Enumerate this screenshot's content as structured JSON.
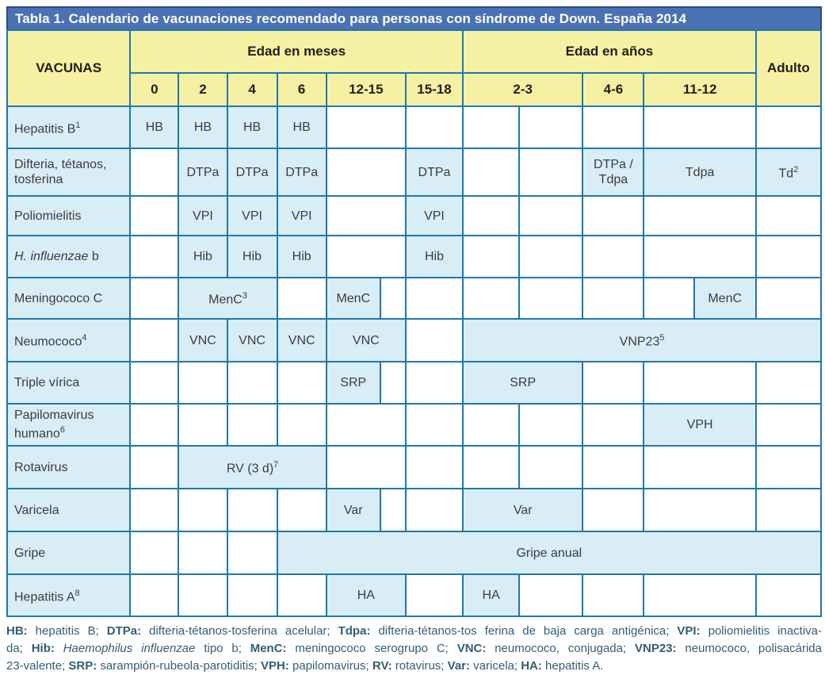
{
  "title": "Tabla 1. Calendario de vacunaciones recomendado para personas con síndrome de Down. España 2014",
  "colors": {
    "title_bar": "#4a71b3",
    "header_yellow": "#f6f0a3",
    "dose_cell_blue": "#d9edf6",
    "grid_line": "#2077ad",
    "footnote_text": "#345c72"
  },
  "table": {
    "corner_label": "VACUNAS",
    "group_headers": [
      {
        "label": "Edad en meses",
        "span": 7
      },
      {
        "label": "Edad en años",
        "span": 5
      }
    ],
    "adulto_label": "Adulto",
    "age_headers": [
      {
        "label": "0",
        "span": 1
      },
      {
        "label": "2",
        "span": 1
      },
      {
        "label": "4",
        "span": 1
      },
      {
        "label": "6",
        "span": 1
      },
      {
        "label": "12-15",
        "span": 2
      },
      {
        "label": "15-18",
        "span": 1
      },
      {
        "label": "2-3",
        "span": 2
      },
      {
        "label": "4-6",
        "span": 1
      },
      {
        "label": "11-12",
        "span": 2
      },
      {
        "label": "Adulto",
        "span": 1
      }
    ],
    "rows": [
      {
        "label": {
          "text": "Hepatitis B",
          "sup": "1"
        },
        "cells": [
          {
            "text": "HB",
            "filled": true
          },
          {
            "text": "HB",
            "filled": true
          },
          {
            "text": "HB",
            "filled": true
          },
          {
            "text": "HB",
            "filled": true
          },
          {
            "span": 2
          },
          {},
          {},
          {},
          {},
          {
            "span": 2
          },
          {}
        ]
      },
      {
        "label": {
          "text": "Difteria, tétanos, tosferina"
        },
        "cells": [
          {},
          {
            "text": "DTPa",
            "filled": true
          },
          {
            "text": "DTPa",
            "filled": true
          },
          {
            "text": "DTPa",
            "filled": true
          },
          {
            "span": 2
          },
          {
            "text": "DTPa",
            "filled": true
          },
          {},
          {},
          {
            "text": "DTPa / Tdpa",
            "filled": true
          },
          {
            "text": "Tdpa",
            "filled": true,
            "span": 2
          },
          {
            "text": "Td",
            "sup": "2",
            "filled": true
          }
        ]
      },
      {
        "label": {
          "text": "Poliomielitis"
        },
        "cells": [
          {},
          {
            "text": "VPI",
            "filled": true
          },
          {
            "text": "VPI",
            "filled": true
          },
          {
            "text": "VPI",
            "filled": true
          },
          {
            "span": 2
          },
          {
            "text": "VPI",
            "filled": true
          },
          {},
          {},
          {},
          {
            "span": 2
          },
          {}
        ]
      },
      {
        "label": {
          "italic": "H. influenzae",
          "text": " b"
        },
        "cells": [
          {},
          {
            "text": "Hib",
            "filled": true
          },
          {
            "text": "Hib",
            "filled": true
          },
          {
            "text": "Hib",
            "filled": true
          },
          {
            "span": 2
          },
          {
            "text": "Hib",
            "filled": true
          },
          {},
          {},
          {},
          {
            "span": 2
          },
          {}
        ]
      },
      {
        "label": {
          "text": "Meningococo C"
        },
        "cells": [
          {},
          {
            "text": "MenC",
            "sup": "3",
            "filled": true,
            "span": 2
          },
          {},
          {
            "text": "MenC",
            "filled": true
          },
          {},
          {},
          {},
          {},
          {},
          {},
          {
            "text": "MenC",
            "filled": true
          },
          {}
        ]
      },
      {
        "label": {
          "text": "Neumococo",
          "sup": "4"
        },
        "cells": [
          {},
          {
            "text": "VNC",
            "filled": true
          },
          {
            "text": "VNC",
            "filled": true
          },
          {
            "text": "VNC",
            "filled": true
          },
          {
            "text": "VNC",
            "filled": true,
            "span": 2
          },
          {},
          {
            "text": "VNP23",
            "sup": "5",
            "filled": true,
            "span": 6
          }
        ]
      },
      {
        "label": {
          "text": "Triple vírica"
        },
        "cells": [
          {},
          {},
          {},
          {},
          {
            "text": "SRP",
            "filled": true
          },
          {},
          {},
          {
            "text": "SRP",
            "filled": true,
            "span": 2
          },
          {},
          {
            "span": 2
          },
          {}
        ]
      },
      {
        "label": {
          "text": "Papilomavirus humano",
          "sup": "6"
        },
        "cells": [
          {},
          {},
          {},
          {},
          {
            "span": 2
          },
          {},
          {},
          {},
          {},
          {
            "text": "VPH",
            "filled": true,
            "span": 2
          },
          {}
        ]
      },
      {
        "label": {
          "text": "Rotavirus"
        },
        "cells": [
          {},
          {
            "text": "RV (3 d)",
            "sup": "7",
            "filled": true,
            "span": 3
          },
          {
            "span": 2
          },
          {},
          {},
          {},
          {},
          {
            "span": 2
          },
          {}
        ]
      },
      {
        "label": {
          "text": "Varicela"
        },
        "cells": [
          {},
          {},
          {},
          {},
          {
            "text": "Var",
            "filled": true
          },
          {},
          {},
          {
            "text": "Var",
            "filled": true,
            "span": 2
          },
          {},
          {
            "span": 2
          },
          {}
        ]
      },
      {
        "label": {
          "text": "Gripe"
        },
        "cells": [
          {},
          {},
          {},
          {
            "text": "Gripe anual",
            "filled": true,
            "span": 10
          }
        ]
      },
      {
        "label": {
          "text": "Hepatitis A",
          "sup": "8"
        },
        "cells": [
          {},
          {},
          {},
          {},
          {
            "text": "HA",
            "filled": true,
            "span": 2
          },
          {},
          {
            "text": "HA",
            "filled": true
          },
          {},
          {},
          {
            "span": 2
          },
          {}
        ]
      }
    ]
  },
  "footnote": {
    "lines": [
      [
        {
          "t": "HB:",
          "b": true
        },
        {
          "t": " hepatitis B; "
        },
        {
          "t": "DTPa:",
          "b": true
        },
        {
          "t": " difteria-tétanos-tosferina acelular; "
        },
        {
          "t": "Tdpa:",
          "b": true
        },
        {
          "t": " difteria-tétanos-tos ferina de baja carga antigénica; "
        },
        {
          "t": "VPI:",
          "b": true
        },
        {
          "t": " poliomielitis inactiva-"
        }
      ],
      [
        {
          "t": "da; "
        },
        {
          "t": "Hib:",
          "b": true
        },
        {
          "t": " "
        },
        {
          "t": "Haemophilus influenzae",
          "i": true
        },
        {
          "t": "  tipo b; "
        },
        {
          "t": "MenC:",
          "b": true
        },
        {
          "t": " meningococo serogrupo C; "
        },
        {
          "t": "VNC:",
          "b": true
        },
        {
          "t": " neumococo, conjugada; "
        },
        {
          "t": "VNP23:",
          "b": true
        },
        {
          "t": " neumococo, polisacárida"
        }
      ],
      [
        {
          "t": "23-valente; "
        },
        {
          "t": "SRP:",
          "b": true
        },
        {
          "t": " sarampión-rubeola-parotiditis; "
        },
        {
          "t": "VPH:",
          "b": true
        },
        {
          "t": " papilomavirus; "
        },
        {
          "t": "RV:",
          "b": true
        },
        {
          "t": " rotavirus; "
        },
        {
          "t": "Var:",
          "b": true
        },
        {
          "t": " varicela; "
        },
        {
          "t": "HA:",
          "b": true
        },
        {
          "t": " hepatitis A."
        }
      ]
    ]
  }
}
